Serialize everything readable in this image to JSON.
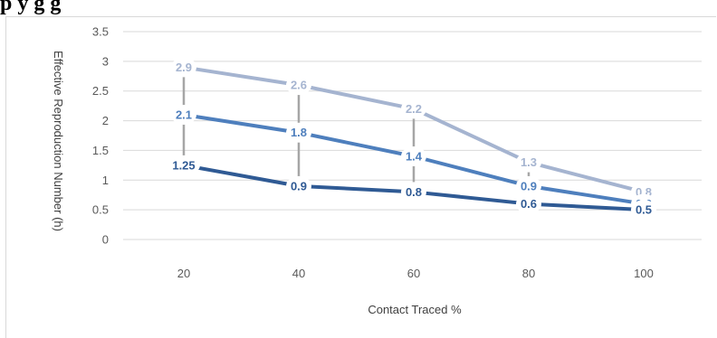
{
  "heading": "p                    y g g",
  "chart_data": {
    "type": "line",
    "title": "",
    "xlabel": "Contact Traced %",
    "ylabel": "Effective Reproduction Number (h)",
    "ylim": [
      0,
      3.5
    ],
    "yticks": [
      "0",
      "0.5",
      "1",
      "1.5",
      "2",
      "2.5",
      "3",
      "3.5"
    ],
    "categories": [
      "20",
      "40",
      "60",
      "80",
      "100"
    ],
    "grid": true,
    "series": [
      {
        "values": [
          2.9,
          2.6,
          2.2,
          1.3,
          0.8
        ],
        "labels": [
          "2.9",
          "2.6",
          "2.2",
          "1.3",
          "0.8"
        ],
        "color": "#a5b4d0"
      },
      {
        "values": [
          2.1,
          1.8,
          1.4,
          0.9,
          0.6
        ],
        "labels": [
          "2.1",
          "1.8",
          "1.4",
          "0.9",
          "0.6"
        ],
        "color": "#4e7fbd"
      },
      {
        "values": [
          1.25,
          0.9,
          0.8,
          0.6,
          0.5
        ],
        "labels": [
          "1.25",
          "0.9",
          "0.8",
          "0.6",
          "0.5"
        ],
        "color": "#2f5a94"
      }
    ],
    "range_lines_color": "#a6a6a6"
  }
}
